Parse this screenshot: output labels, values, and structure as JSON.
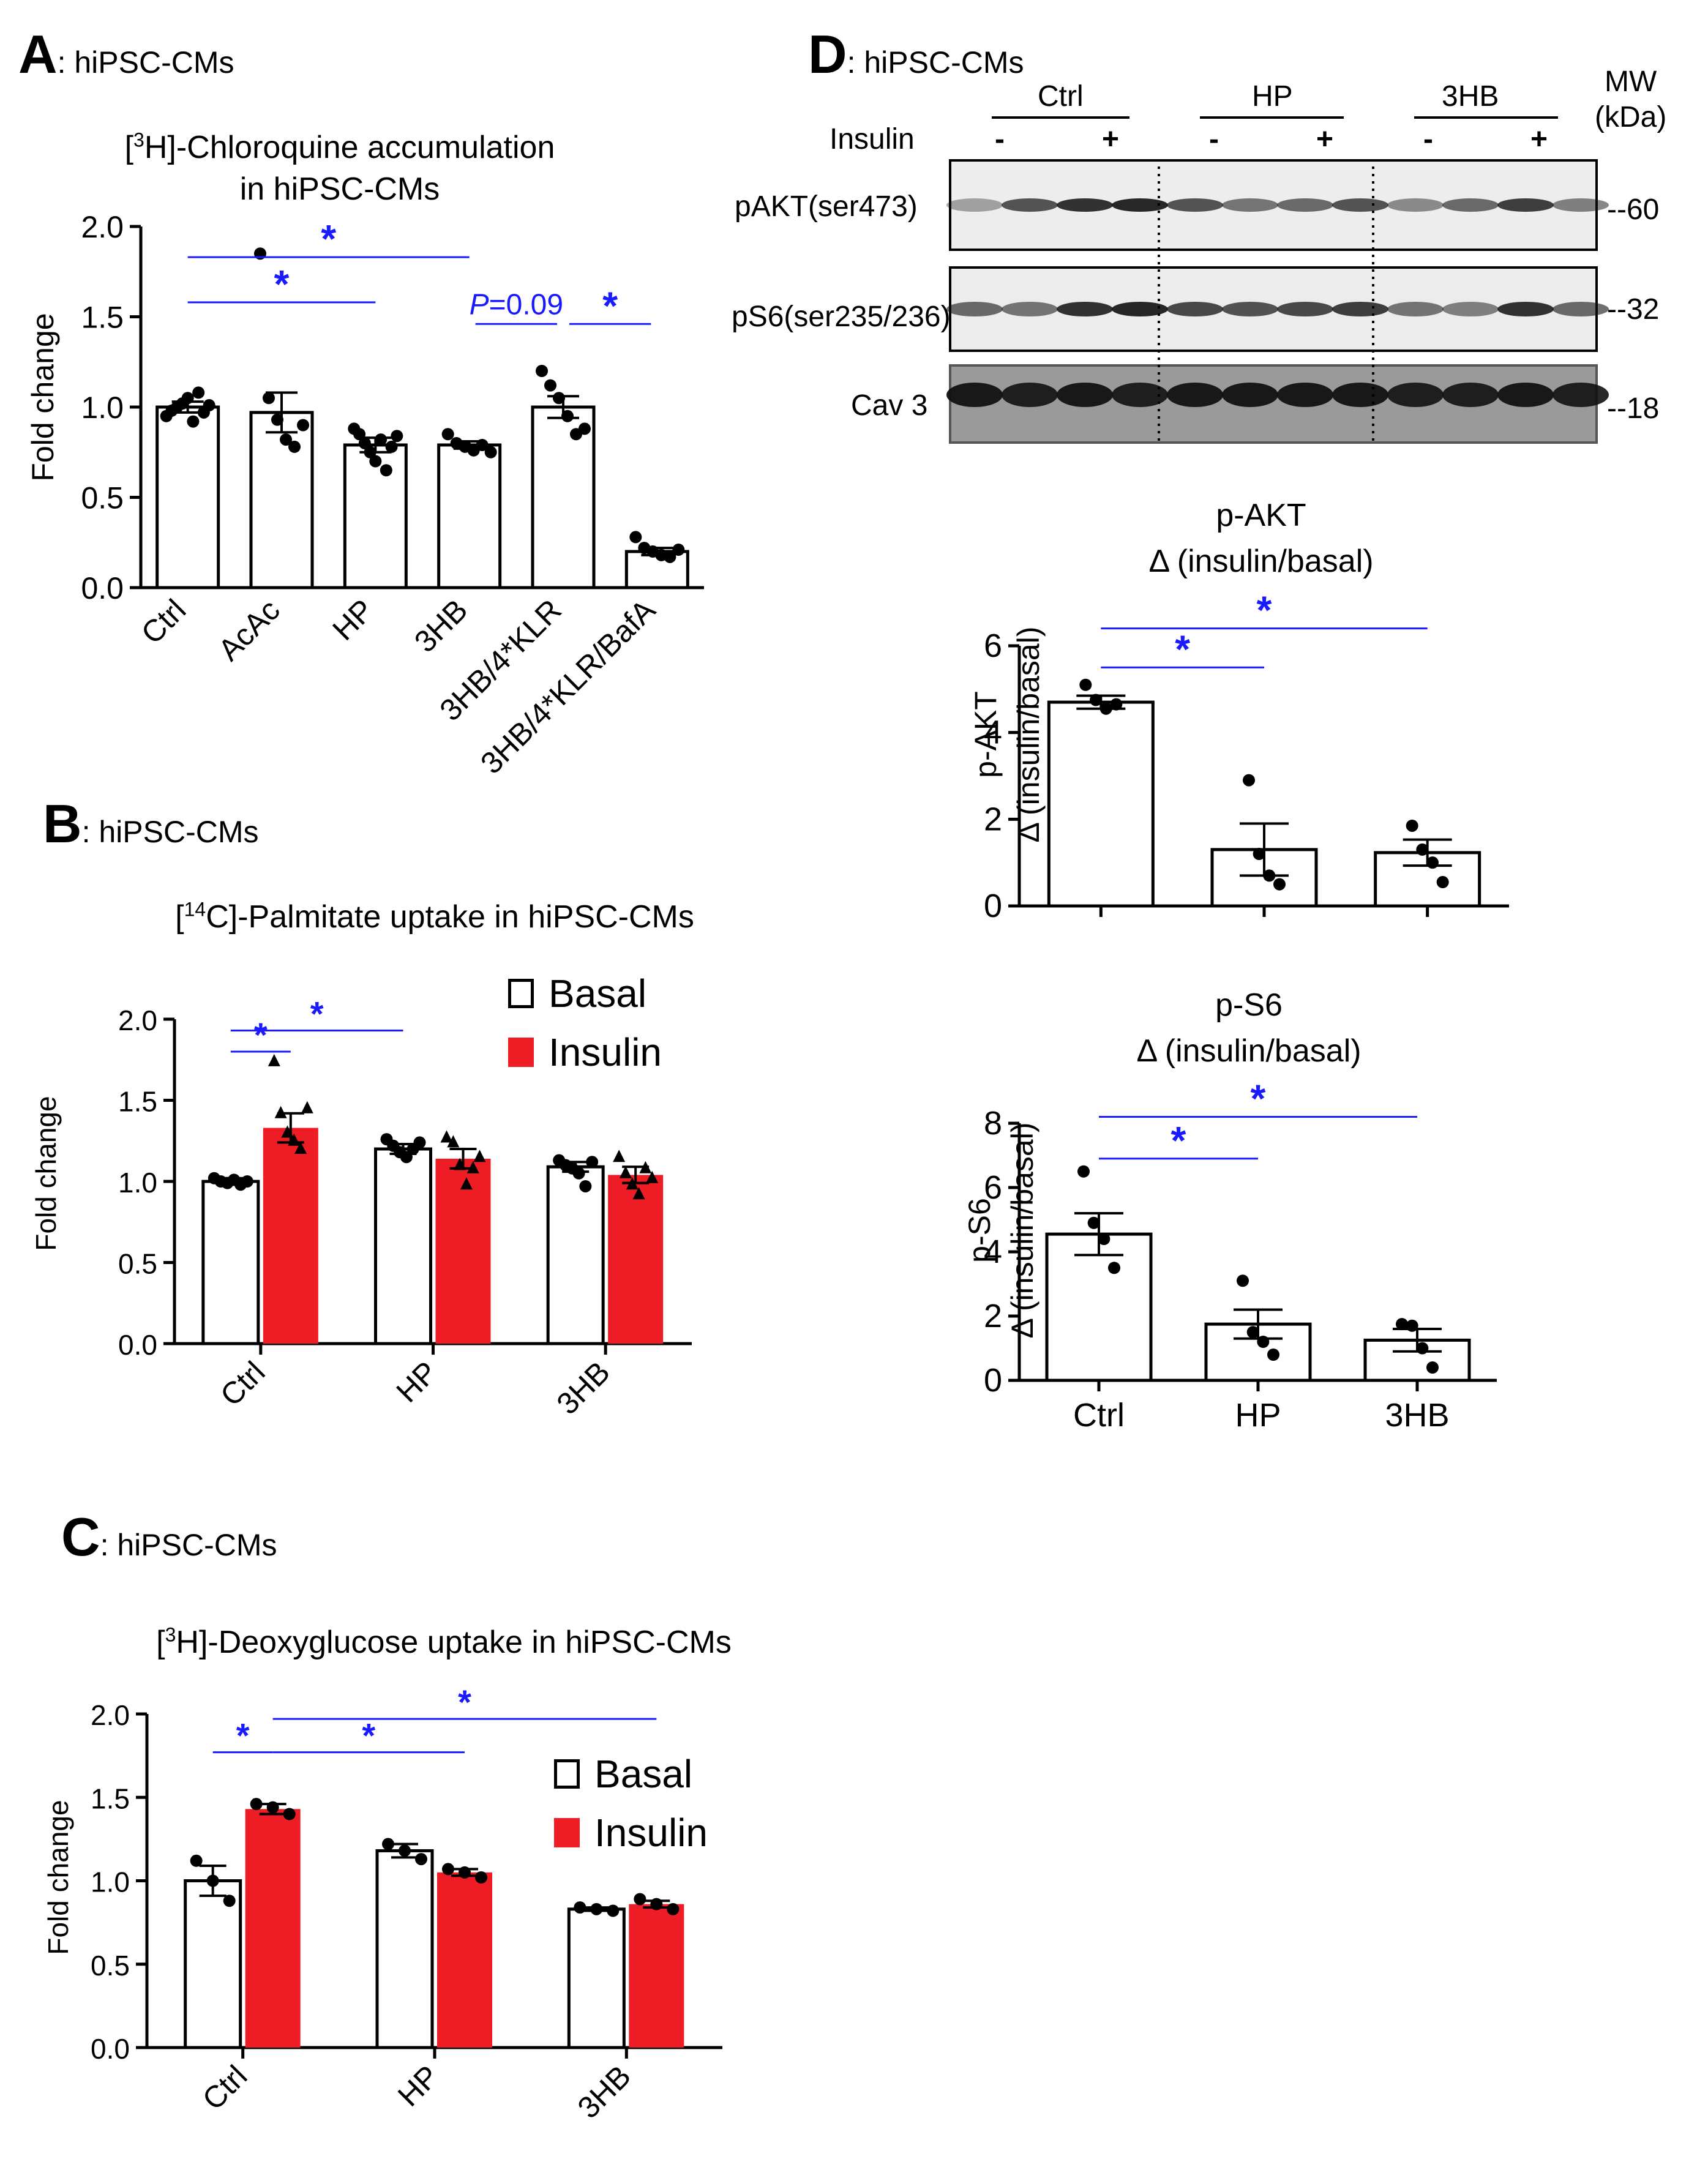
{
  "panels": {
    "A": {
      "letter": "A",
      "subtitle": ": hiPSC-CMs"
    },
    "B": {
      "letter": "B",
      "subtitle": ": hiPSC-CMs"
    },
    "C": {
      "letter": "C",
      "subtitle": ": hiPSC-CMs"
    },
    "D": {
      "letter": "D",
      "subtitle": ": hiPSC-CMs"
    }
  },
  "chart_data": [
    {
      "id": "A",
      "type": "bar",
      "title_pre": "[",
      "title_sup": "3",
      "title_post": "H]-Chloroquine accumulation",
      "title_line2": "in hiPSC-CMs",
      "ylabel": "Fold change",
      "ylim": [
        0,
        2.0
      ],
      "yticks": [
        "0.0",
        "0.5",
        "1.0",
        "1.5",
        "2.0"
      ],
      "categories": [
        "Ctrl",
        "AcAc",
        "HP",
        "3HB",
        "3HB/4*KLR",
        "3HB/4*KLR/BafA"
      ],
      "values": [
        1.0,
        0.97,
        0.79,
        0.79,
        1.0,
        0.2
      ],
      "errors": [
        0.03,
        0.11,
        0.04,
        0.02,
        0.06,
        0.02
      ],
      "points": [
        [
          0.95,
          0.98,
          1.0,
          1.02,
          1.05,
          0.92,
          1.08,
          0.97,
          1.01
        ],
        [
          1.85,
          1.05,
          0.93,
          0.82,
          0.78,
          0.9
        ],
        [
          0.88,
          0.85,
          0.8,
          0.75,
          0.7,
          0.82,
          0.65,
          0.78,
          0.84
        ],
        [
          0.85,
          0.8,
          0.78,
          0.76,
          0.79,
          0.75
        ],
        [
          1.2,
          1.12,
          1.05,
          0.95,
          0.85,
          0.88
        ],
        [
          0.28,
          0.22,
          0.2,
          0.18,
          0.17,
          0.21
        ]
      ],
      "annotations": [
        {
          "from": 0,
          "to": 3,
          "level": 1.83,
          "text": "*"
        },
        {
          "from": 0,
          "to": 2,
          "level": 1.58,
          "text": "*"
        },
        {
          "from": 3.5,
          "to": 4.5,
          "level": 1.46,
          "text": "P=0.09"
        },
        {
          "from": 4.5,
          "to": 5.5,
          "level": 1.46,
          "text": "*"
        }
      ],
      "pvalue": {
        "italic": "P",
        "rest": "=0.09"
      }
    },
    {
      "id": "B",
      "type": "bar",
      "title_pre": "[",
      "title_sup": "14",
      "title_post": "C]-Palmitate uptake in hiPSC-CMs",
      "ylabel": "Fold change",
      "ylim": [
        0,
        2.0
      ],
      "yticks": [
        "0.0",
        "0.5",
        "1.0",
        "1.5",
        "2.0"
      ],
      "categories": [
        "Ctrl",
        "HP",
        "3HB"
      ],
      "series": [
        {
          "name": "Basal",
          "values": [
            1.0,
            1.2,
            1.09
          ],
          "errors": [
            0.02,
            0.03,
            0.03
          ],
          "points": [
            [
              1.02,
              1.0,
              0.99,
              1.01,
              0.98,
              1.0
            ],
            [
              1.26,
              1.22,
              1.18,
              1.15,
              1.2,
              1.24
            ],
            [
              1.13,
              1.1,
              1.08,
              1.05,
              0.97,
              1.12
            ]
          ]
        },
        {
          "name": "Insulin",
          "values": [
            1.33,
            1.14,
            1.04
          ],
          "errors": [
            0.09,
            0.06,
            0.05
          ],
          "points": [
            [
              1.74,
              1.42,
              1.3,
              1.25,
              1.2,
              1.45
            ],
            [
              1.27,
              1.24,
              1.1,
              0.98,
              1.08,
              1.15
            ],
            [
              1.15,
              1.05,
              0.98,
              0.92,
              1.08,
              1.02
            ]
          ]
        }
      ],
      "legend": [
        "Basal",
        "Insulin"
      ],
      "annotations": [
        {
          "from": 0.0,
          "to": 0.4,
          "level": 1.8,
          "text": "*"
        },
        {
          "from": 0.0,
          "to": 1.2,
          "level": 1.93,
          "text": "*"
        }
      ]
    },
    {
      "id": "C",
      "type": "bar",
      "title_pre": "[",
      "title_sup": "3",
      "title_post": "H]-Deoxyglucose uptake in hiPSC-CMs",
      "ylabel": "Fold change",
      "ylim": [
        0,
        2.0
      ],
      "yticks": [
        "0.0",
        "0.5",
        "1.0",
        "1.5",
        "2.0"
      ],
      "categories": [
        "Ctrl",
        "HP",
        "3HB"
      ],
      "series": [
        {
          "name": "Basal",
          "values": [
            1.0,
            1.18,
            0.83
          ],
          "errors": [
            0.09,
            0.04,
            0.01
          ],
          "points": [
            [
              1.12,
              1.0,
              0.88
            ],
            [
              1.22,
              1.18,
              1.13
            ],
            [
              0.84,
              0.83,
              0.82
            ]
          ]
        },
        {
          "name": "Insulin",
          "values": [
            1.43,
            1.05,
            0.86
          ],
          "errors": [
            0.03,
            0.02,
            0.02
          ],
          "points": [
            [
              1.46,
              1.44,
              1.4
            ],
            [
              1.07,
              1.05,
              1.02
            ],
            [
              0.89,
              0.86,
              0.83
            ]
          ]
        }
      ],
      "legend": [
        "Basal",
        "Insulin"
      ],
      "annotations": [
        {
          "from": 0.0,
          "to": 0.4,
          "level": 1.77,
          "text": "*"
        },
        {
          "from": 0.4,
          "to": 1.4,
          "level": 1.77,
          "text": "*"
        },
        {
          "from": 0.4,
          "to": 2.4,
          "level": 1.97,
          "text": "*"
        }
      ]
    },
    {
      "id": "D1",
      "type": "bar",
      "title_line1": "p-AKT",
      "title_line2": "Δ (insulin/basal)",
      "ylabel_line1": "p-AKT",
      "ylabel_line2": "Δ (insulin/basal)",
      "ylim": [
        0,
        6
      ],
      "yticks": [
        "0",
        "2",
        "4",
        "6"
      ],
      "categories": [
        "Ctrl",
        "HP",
        "3HB"
      ],
      "values": [
        4.7,
        1.3,
        1.23
      ],
      "errors": [
        0.15,
        0.6,
        0.3
      ],
      "points": [
        [
          5.1,
          4.75,
          4.55,
          4.65
        ],
        [
          2.9,
          1.2,
          0.7,
          0.5
        ],
        [
          1.85,
          1.3,
          1.0,
          0.55
        ]
      ],
      "annotations": [
        {
          "from": 0,
          "to": 1,
          "level": 5.5,
          "text": "*"
        },
        {
          "from": 0,
          "to": 2,
          "level": 6.4,
          "text": "*"
        }
      ]
    },
    {
      "id": "D2",
      "type": "bar",
      "title_line1": "p-S6",
      "title_line2": "Δ (insulin/basal)",
      "ylabel_line1": "p-S6",
      "ylabel_line2": "Δ (insulin/basal)",
      "ylim": [
        0,
        8
      ],
      "yticks": [
        "0",
        "2",
        "4",
        "6",
        "8"
      ],
      "categories": [
        "Ctrl",
        "HP",
        "3HB"
      ],
      "values": [
        4.55,
        1.75,
        1.25
      ],
      "errors": [
        0.65,
        0.45,
        0.35
      ],
      "points": [
        [
          6.5,
          4.9,
          4.4,
          3.5
        ],
        [
          3.1,
          1.5,
          1.2,
          0.8
        ],
        [
          1.75,
          1.7,
          1.0,
          0.4
        ]
      ],
      "annotations": [
        {
          "from": 0,
          "to": 1,
          "level": 6.9,
          "text": "*"
        },
        {
          "from": 0,
          "to": 2,
          "level": 8.2,
          "text": "*"
        }
      ]
    }
  ],
  "western": {
    "groups": [
      "Ctrl",
      "HP",
      "3HB"
    ],
    "insulin_label": "Insulin",
    "minus": "-",
    "plus": "+",
    "mw_header_line1": "MW",
    "mw_header_line2": "(kDa)",
    "blots": [
      {
        "label": "pAKT(ser473)",
        "mw": "--60"
      },
      {
        "label": "pS6(ser235/236)",
        "mw": "--32"
      },
      {
        "label": "Cav 3",
        "mw": "--18"
      }
    ]
  },
  "colors": {
    "accent_blue": "#1a1aff",
    "insulin_red": "#ee1c25",
    "bar_black": "#000000"
  }
}
